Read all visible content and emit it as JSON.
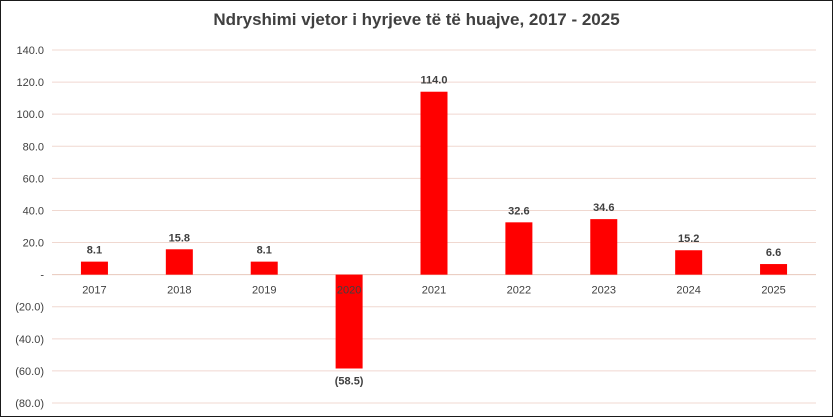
{
  "chart_data": {
    "type": "bar",
    "title": "Ndryshimi vjetor i hyrjeve të të huajve, 2017 - 2025",
    "categories": [
      "2017",
      "2018",
      "2019",
      "2020",
      "2021",
      "2022",
      "2023",
      "2024",
      "2025"
    ],
    "values": [
      8.1,
      15.8,
      8.1,
      -58.5,
      114.0,
      32.6,
      34.6,
      15.2,
      6.6
    ],
    "data_labels": [
      "8.1",
      "15.8",
      "8.1",
      "(58.5)",
      "114.0",
      "32.6",
      "34.6",
      "15.2",
      "6.6"
    ],
    "yticks": [
      140,
      120,
      100,
      80,
      60,
      40,
      20,
      0,
      -20,
      -40,
      -60,
      -80
    ],
    "ytick_labels": [
      "140.0",
      "120.0",
      "100.0",
      "80.0",
      "60.0",
      "40.0",
      "20.0",
      "-",
      "(20.0)",
      "(40.0)",
      "(60.0)",
      "(80.0)"
    ],
    "ylim": [
      -80,
      140
    ],
    "xlabel": "",
    "ylabel": "",
    "grid": true,
    "bar_color": "#ff0000",
    "grid_color": "#f0d8d0"
  }
}
